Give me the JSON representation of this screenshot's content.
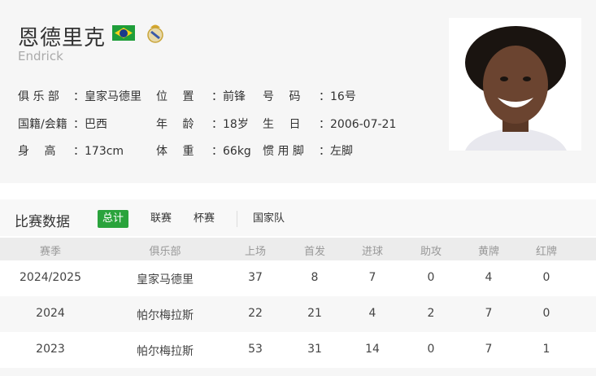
{
  "player": {
    "name_cn": "恩德里克",
    "name_en": "Endrick",
    "flag_icon": "brazil-flag-icon",
    "club_icon": "real-madrid-crest-icon"
  },
  "info": [
    [
      {
        "label": "俱 乐 部",
        "value": "皇家马德里"
      },
      {
        "label": "位　 置",
        "value": "前锋"
      },
      {
        "label": "号　 码",
        "value": "16号"
      }
    ],
    [
      {
        "label": "国籍/会籍",
        "value": "巴西"
      },
      {
        "label": "年　 龄",
        "value": "18岁"
      },
      {
        "label": "生　 日",
        "value": "2006-07-21"
      }
    ],
    [
      {
        "label": "身　 高",
        "value": "173cm"
      },
      {
        "label": "体　 重",
        "value": "66kg"
      },
      {
        "label": "惯 用 脚",
        "value": "左脚"
      }
    ]
  ],
  "stats": {
    "title": "比赛数据",
    "tabs": [
      {
        "label": "总计",
        "active": true
      },
      {
        "label": "联赛"
      },
      {
        "label": "杯赛"
      },
      {
        "label": "国家队"
      }
    ],
    "columns": [
      "赛季",
      "俱乐部",
      "上场",
      "首发",
      "进球",
      "助攻",
      "黄牌",
      "红牌"
    ],
    "rows": [
      [
        "2024/2025",
        "皇家马德里",
        "37",
        "8",
        "7",
        "0",
        "4",
        "0"
      ],
      [
        "2024",
        "帕尔梅拉斯",
        "22",
        "21",
        "4",
        "2",
        "7",
        "0"
      ],
      [
        "2023",
        "帕尔梅拉斯",
        "53",
        "31",
        "14",
        "0",
        "7",
        "1"
      ]
    ]
  },
  "colors": {
    "accent": "#2aa33c"
  }
}
